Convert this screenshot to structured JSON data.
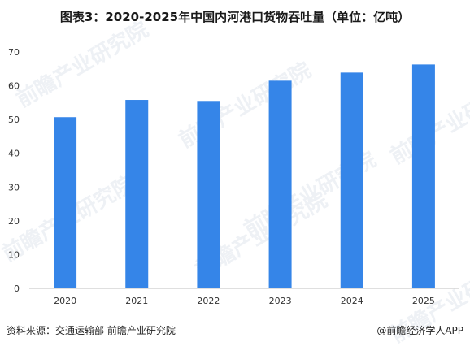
{
  "title": "图表3：2020-2025年中国内河港口货物吞吐量（单位：亿吨）",
  "source": "资料来源：交通运输部  前瞻产业研究院",
  "watermark_text": "前瞻产业研究院",
  "credit": "@前瞻经济学人APP",
  "colors": {
    "bar": "#3585e8",
    "axis": "#bfbfbf",
    "text": "#333333"
  },
  "chart_data": {
    "type": "bar",
    "title": "图表3：2020-2025年中国内河港口货物吞吐量（单位：亿吨）",
    "categories": [
      "2020",
      "2021",
      "2022",
      "2023",
      "2024",
      "2025"
    ],
    "series": [
      {
        "values": [
          50.7,
          55.8,
          55.5,
          61.5,
          63.9,
          66.3
        ]
      }
    ],
    "ylim": [
      0,
      70
    ],
    "yticks": [
      "0",
      "10",
      "20",
      "30",
      "40",
      "50",
      "60",
      "70"
    ],
    "xlabel": "",
    "ylabel": "",
    "grid": false,
    "legend": "none"
  }
}
